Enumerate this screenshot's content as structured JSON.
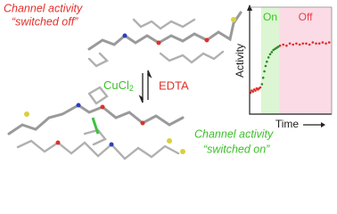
{
  "labels": {
    "off_line1": "Channel activity",
    "off_line2": "“switched off”",
    "on_line1": "Channel activity",
    "on_line2": "“switched on”",
    "reagent_forward": "CuCl",
    "reagent_forward_sub": "2",
    "reagent_reverse": "EDTA"
  },
  "chart_data": {
    "type": "scatter",
    "xlabel": "Time",
    "ylabel": "Activity",
    "xlim": [
      0,
      100
    ],
    "ylim": [
      0,
      1
    ],
    "regions": [
      {
        "label": "On",
        "start": 14,
        "end": 36,
        "color": "#dcf5d2",
        "text_color": "#3cbf2a"
      },
      {
        "label": "Off",
        "start": 36,
        "end": 100,
        "color": "#fadbe6",
        "text_color": "#e8404a"
      }
    ],
    "series": [
      {
        "color": "#e0302a",
        "x": [
          1,
          2.5,
          4,
          5.5,
          7,
          8.5,
          10,
          11.5,
          13
        ],
        "values": [
          0.2,
          0.22,
          0.21,
          0.23,
          0.22,
          0.24,
          0.23,
          0.24,
          0.25
        ]
      },
      {
        "color": "#2a8a2a",
        "x": [
          15,
          16.5,
          18,
          19.5,
          21,
          23,
          25,
          27,
          29,
          31,
          33,
          35
        ],
        "values": [
          0.28,
          0.34,
          0.4,
          0.45,
          0.49,
          0.53,
          0.56,
          0.58,
          0.6,
          0.61,
          0.62,
          0.63
        ]
      },
      {
        "color": "#e0302a",
        "x": [
          37,
          41,
          45,
          49,
          53,
          57,
          61,
          65,
          69,
          73,
          77,
          81,
          85,
          89,
          93,
          97
        ],
        "values": [
          0.64,
          0.65,
          0.64,
          0.66,
          0.65,
          0.66,
          0.65,
          0.66,
          0.66,
          0.65,
          0.67,
          0.66,
          0.66,
          0.67,
          0.66,
          0.67
        ]
      }
    ]
  }
}
